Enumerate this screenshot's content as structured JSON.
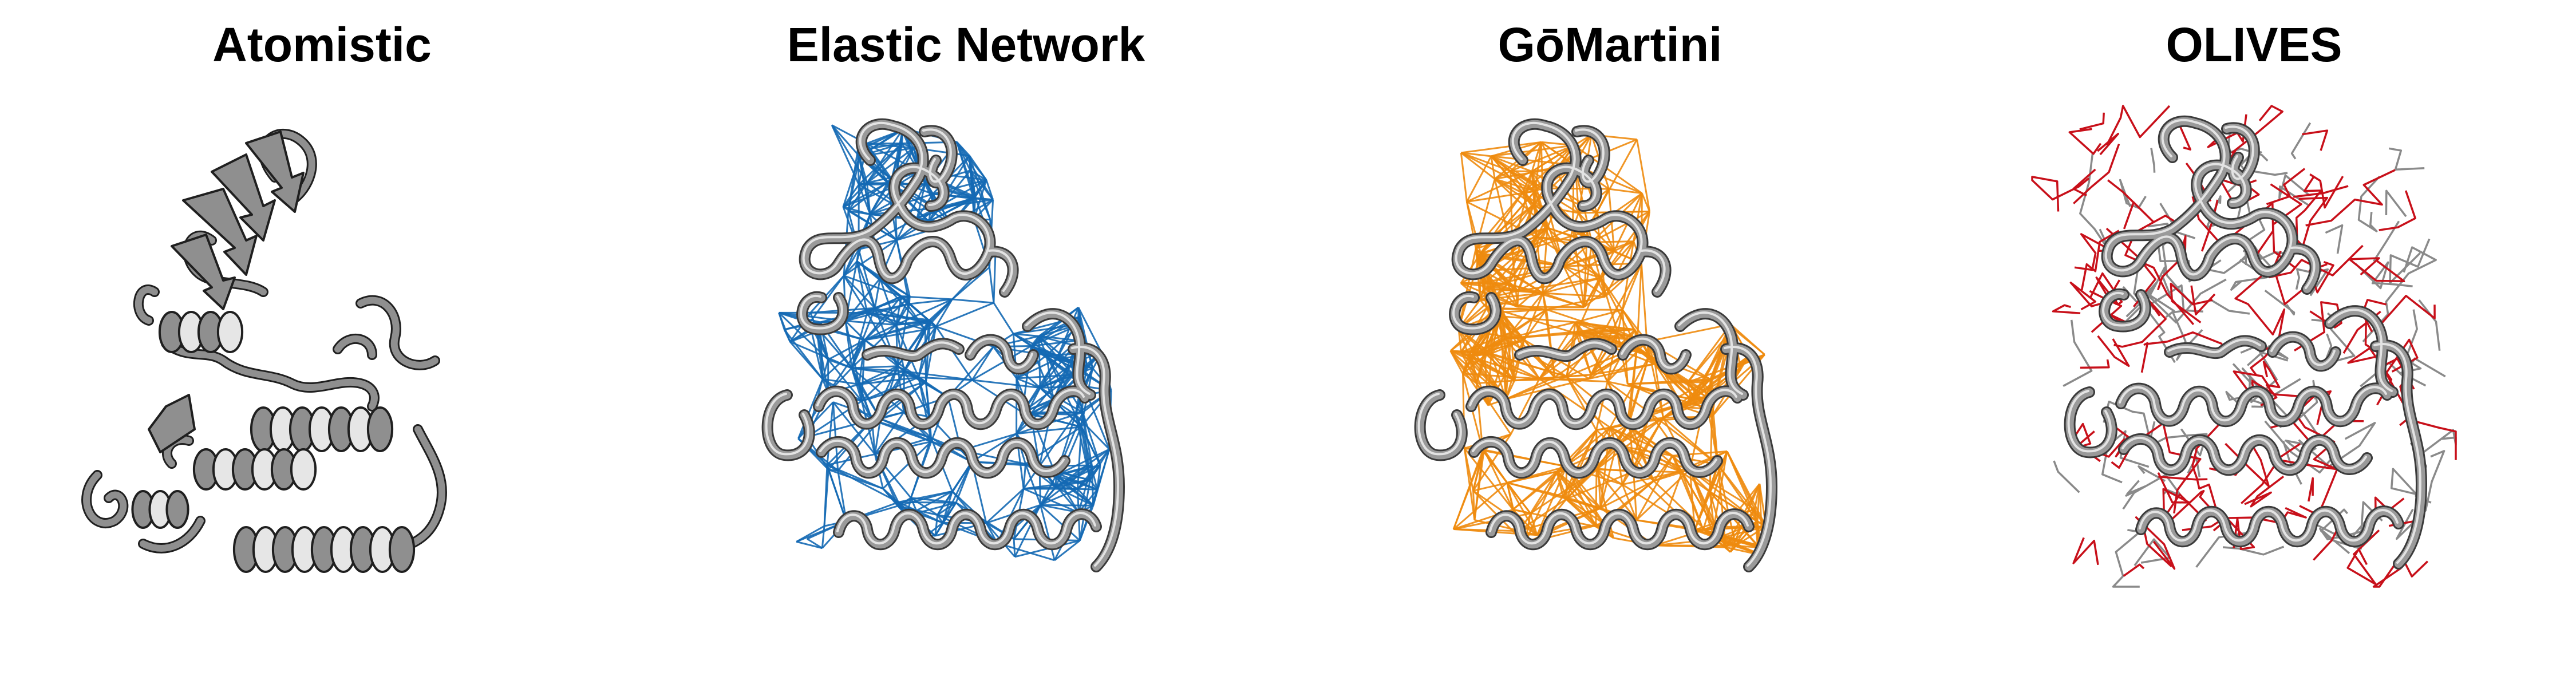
{
  "panels": [
    {
      "title": "Atomistic",
      "style": "atomistic",
      "colors": {
        "edge": "#1f1f1f",
        "tube": "#8f8f8f",
        "highlight": "#e6e6e6"
      }
    },
    {
      "title": "Elastic Network",
      "style": "network",
      "colors": {
        "network": "#1469b4",
        "tube": "#9a9a9a",
        "highlight": "#f0f0f0",
        "outline": "#3a3a3a"
      }
    },
    {
      "title": "GōMartini",
      "style": "network",
      "colors": {
        "network": "#ee8b0e",
        "tube": "#9a9a9a",
        "highlight": "#f0f0f0",
        "outline": "#3a3a3a"
      }
    },
    {
      "title": "OLIVES",
      "style": "olives",
      "colors": {
        "primary": "#c8101a",
        "secondary": "#8a8a8a",
        "tube": "#9a9a9a",
        "highlight": "#f0f0f0",
        "outline": "#3a3a3a"
      }
    }
  ]
}
